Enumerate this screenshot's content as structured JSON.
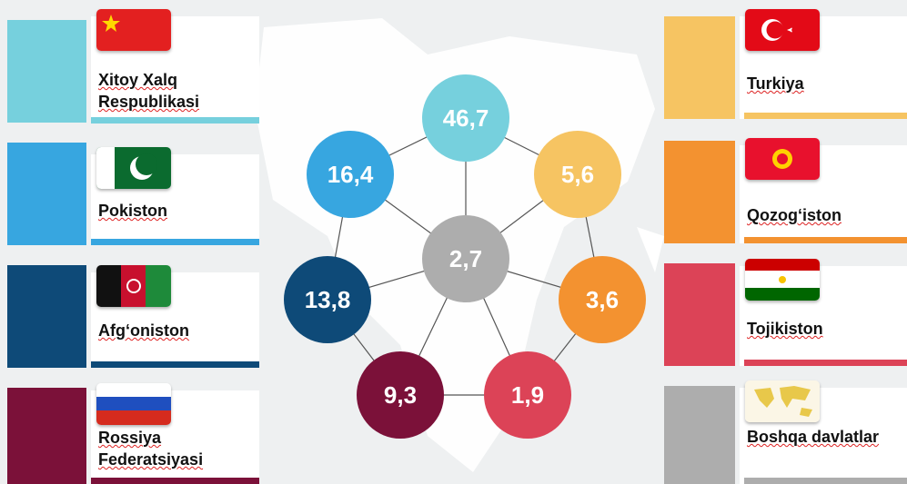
{
  "items": [
    {
      "name": "Xitoy Xalq Respublikasi",
      "value": "46,7",
      "color": "#76d0dd"
    },
    {
      "name": "Pokiston",
      "value": "16,4",
      "color": "#37a6e0"
    },
    {
      "name": "Afg‘oniston",
      "value": "13,8",
      "color": "#0e4a78"
    },
    {
      "name": "Rossiya Federatsiyasi",
      "value": "9,3",
      "color": "#7b1139"
    },
    {
      "name": "Turkiya",
      "value": "5,6",
      "color": "#f6c462"
    },
    {
      "name": "Qozog‘iston",
      "value": "3,6",
      "color": "#f39230"
    },
    {
      "name": "Tojikiston",
      "value": "1,9",
      "color": "#dc4357"
    },
    {
      "name": "Boshqa davlatlar",
      "value": "2,7",
      "color": "#adadad"
    }
  ]
}
